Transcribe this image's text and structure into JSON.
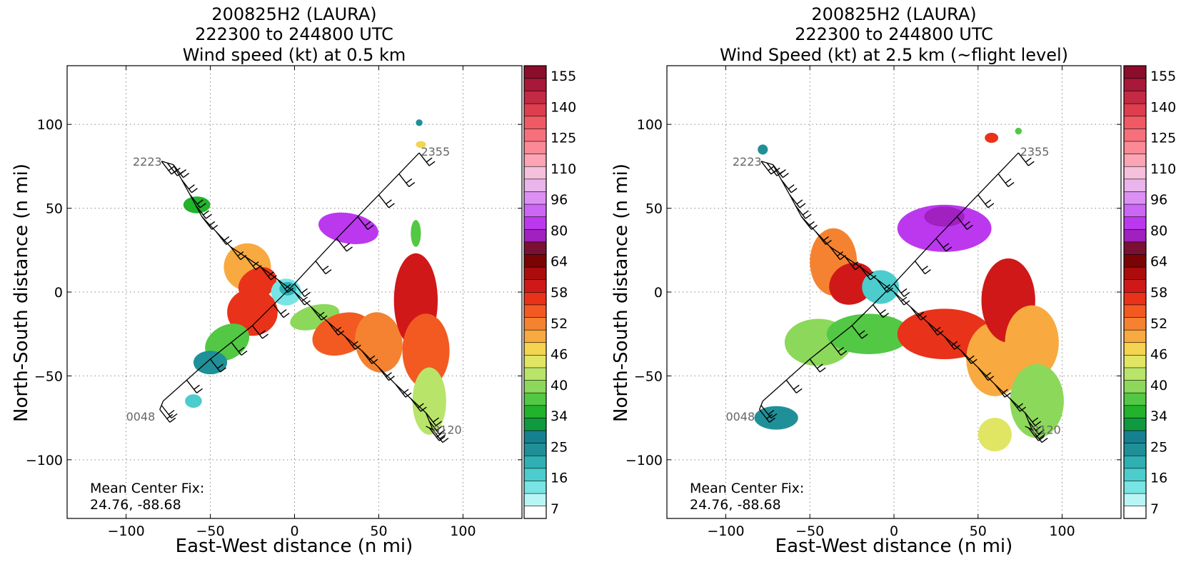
{
  "colors": {
    "colorbar": [
      "#ffffff",
      "#b8f6f6",
      "#78e4e4",
      "#4ccccc",
      "#2eb0b4",
      "#1f9098",
      "#168090",
      "#0f9a40",
      "#22b22c",
      "#52c844",
      "#8cd85a",
      "#b8e46a",
      "#e0e664",
      "#f4d450",
      "#f8aa40",
      "#f58230",
      "#f25a22",
      "#e8321a",
      "#d01818",
      "#ac0c0c",
      "#7a0404",
      "#7a1034",
      "#a020c0",
      "#bc38ee",
      "#cc66f4",
      "#dc90f4",
      "#eab4ec",
      "#f5c0dc",
      "#fca4b4",
      "#fb8a96",
      "#f6707c",
      "#ef5a64",
      "#de3e4e",
      "#c42a44",
      "#a81838",
      "#8c0c2c"
    ]
  },
  "panels": [
    {
      "title_lines": [
        "200825H2 (LAURA)",
        "222300 to 244800 UTC",
        "Wind speed (kt) at 0.5 km"
      ],
      "xlabel": "East-West distance (n mi)",
      "ylabel": "North-South distance (n mi)",
      "xticks": [
        "−100",
        "−50",
        "0",
        "50",
        "100"
      ],
      "yticks": [
        "100",
        "50",
        "0",
        "−50",
        "−100"
      ],
      "colorbar_ticks": [
        "155",
        "140",
        "125",
        "110",
        "96",
        "80",
        "64",
        "58",
        "52",
        "46",
        "40",
        "34",
        "25",
        "16",
        "7"
      ],
      "fix_line1": "Mean Center Fix:",
      "fix_line2": "24.76, -88.68",
      "track_labels": [
        "2223",
        "2355",
        "0048",
        "0120"
      ]
    },
    {
      "title_lines": [
        "200825H2 (LAURA)",
        "222300 to 244800 UTC",
        "Wind Speed (kt) at 2.5 km (~flight level)"
      ],
      "xlabel": "East-West distance (n mi)",
      "ylabel": "North-South distance (n mi)",
      "xticks": [
        "−100",
        "−50",
        "0",
        "50",
        "100"
      ],
      "yticks": [
        "100",
        "50",
        "0",
        "−50",
        "−100"
      ],
      "colorbar_ticks": [
        "155",
        "140",
        "125",
        "110",
        "96",
        "80",
        "64",
        "58",
        "52",
        "46",
        "40",
        "34",
        "25",
        "16",
        "7"
      ],
      "fix_line1": "Mean Center Fix:",
      "fix_line2": "24.76, -88.68",
      "track_labels": [
        "2223",
        "2355",
        "0048",
        "0120"
      ]
    }
  ],
  "chart_data": [
    {
      "type": "heatmap",
      "title": "200825H2 (LAURA) 222300 to 244800 UTC Wind speed (kt) at 0.5 km",
      "xlabel": "East-West distance (n mi)",
      "ylabel": "North-South distance (n mi)",
      "xlim": [
        -135,
        135
      ],
      "ylim": [
        -135,
        135
      ],
      "xticks": [
        -100,
        -50,
        0,
        50,
        100
      ],
      "yticks": [
        -100,
        -50,
        0,
        50,
        100
      ],
      "grid": true,
      "colorbar_levels": [
        7,
        16,
        25,
        34,
        40,
        46,
        52,
        58,
        64,
        80,
        96,
        110,
        125,
        140,
        155
      ],
      "mean_center_fix": [
        24.76,
        -88.68
      ],
      "track": [
        {
          "label": "2223",
          "points": [
            [
              -79,
              78
            ],
            [
              -72,
              76
            ],
            [
              -62,
              58
            ],
            [
              -55,
              45
            ],
            [
              -38,
              27
            ],
            [
              -20,
              15
            ],
            [
              0,
              0
            ],
            [
              20,
              -18
            ],
            [
              40,
              -35
            ],
            [
              60,
              -55
            ],
            [
              78,
              -72
            ],
            [
              82,
              -82
            ]
          ]
        },
        {
          "label": "2355",
          "points": [
            [
              74,
              83
            ],
            [
              50,
              58
            ],
            [
              25,
              32
            ],
            [
              0,
              5
            ],
            [
              -25,
              -20
            ],
            [
              -50,
              -40
            ],
            [
              -78,
              -65
            ]
          ]
        },
        {
          "label": "0048",
          "points": [
            [
              -80,
              -70
            ],
            [
              -78,
              -65
            ]
          ]
        },
        {
          "label": "0120",
          "points": [
            [
              82,
              -82
            ],
            [
              78,
              -80
            ]
          ]
        }
      ],
      "blobs": [
        {
          "cx": -58,
          "cy": 52,
          "rx": 8,
          "ry": 5,
          "rot": 0,
          "c": 8
        },
        {
          "cx": -28,
          "cy": 15,
          "rx": 14,
          "ry": 14,
          "rot": 0,
          "c": 14
        },
        {
          "cx": -22,
          "cy": 5,
          "rx": 12,
          "ry": 9,
          "rot": 30,
          "c": 17
        },
        {
          "cx": -5,
          "cy": 0,
          "rx": 9,
          "ry": 8,
          "rot": 0,
          "c": 2
        },
        {
          "cx": -4,
          "cy": 2,
          "rx": 5,
          "ry": 4,
          "rot": 0,
          "c": 4
        },
        {
          "cx": -25,
          "cy": -12,
          "rx": 15,
          "ry": 14,
          "rot": 0,
          "c": 17
        },
        {
          "cx": -40,
          "cy": -30,
          "rx": 14,
          "ry": 10,
          "rot": 30,
          "c": 9
        },
        {
          "cx": -50,
          "cy": -42,
          "rx": 10,
          "ry": 7,
          "rot": 0,
          "c": 5
        },
        {
          "cx": -60,
          "cy": -65,
          "rx": 5,
          "ry": 4,
          "rot": 0,
          "c": 3
        },
        {
          "cx": 32,
          "cy": 38,
          "rx": 18,
          "ry": 9,
          "rot": -10,
          "c": 23
        },
        {
          "cx": 12,
          "cy": -15,
          "rx": 15,
          "ry": 7,
          "rot": 15,
          "c": 10
        },
        {
          "cx": 28,
          "cy": -25,
          "rx": 18,
          "ry": 12,
          "rot": 20,
          "c": 16
        },
        {
          "cx": 50,
          "cy": -30,
          "rx": 14,
          "ry": 18,
          "rot": 10,
          "c": 15
        },
        {
          "cx": 72,
          "cy": -5,
          "rx": 13,
          "ry": 28,
          "rot": 0,
          "c": 18
        },
        {
          "cx": 78,
          "cy": -35,
          "rx": 14,
          "ry": 22,
          "rot": 0,
          "c": 16
        },
        {
          "cx": 80,
          "cy": -65,
          "rx": 10,
          "ry": 20,
          "rot": 0,
          "c": 11
        },
        {
          "cx": 72,
          "cy": 35,
          "rx": 3,
          "ry": 8,
          "rot": 0,
          "c": 9
        },
        {
          "cx": 75,
          "cy": 88,
          "rx": 3,
          "ry": 2,
          "rot": 0,
          "c": 13
        },
        {
          "cx": 74,
          "cy": 101,
          "rx": 2,
          "ry": 2,
          "rot": 0,
          "c": 5
        }
      ]
    },
    {
      "type": "heatmap",
      "title": "200825H2 (LAURA) 222300 to 244800 UTC Wind Speed (kt) at 2.5 km (~flight level)",
      "xlabel": "East-West distance (n mi)",
      "ylabel": "North-South distance (n mi)",
      "xlim": [
        -135,
        135
      ],
      "ylim": [
        -135,
        135
      ],
      "xticks": [
        -100,
        -50,
        0,
        50,
        100
      ],
      "yticks": [
        -100,
        -50,
        0,
        50,
        100
      ],
      "grid": true,
      "colorbar_levels": [
        7,
        16,
        25,
        34,
        40,
        46,
        52,
        58,
        64,
        80,
        96,
        110,
        125,
        140,
        155
      ],
      "mean_center_fix": [
        24.76,
        -88.68
      ],
      "track": [
        {
          "label": "2223",
          "points": [
            [
              -79,
              78
            ],
            [
              -72,
              76
            ],
            [
              -62,
              58
            ],
            [
              -55,
              45
            ],
            [
              -38,
              27
            ],
            [
              -20,
              15
            ],
            [
              0,
              0
            ],
            [
              20,
              -18
            ],
            [
              40,
              -35
            ],
            [
              60,
              -55
            ],
            [
              78,
              -72
            ],
            [
              82,
              -82
            ]
          ]
        },
        {
          "label": "2355",
          "points": [
            [
              74,
              83
            ],
            [
              50,
              58
            ],
            [
              25,
              32
            ],
            [
              0,
              5
            ],
            [
              -25,
              -20
            ],
            [
              -50,
              -40
            ],
            [
              -78,
              -65
            ]
          ]
        },
        {
          "label": "0048",
          "points": [
            [
              -80,
              -70
            ],
            [
              -78,
              -65
            ]
          ]
        },
        {
          "label": "0120",
          "points": [
            [
              82,
              -82
            ],
            [
              78,
              -80
            ]
          ]
        }
      ],
      "blobs": [
        {
          "cx": -78,
          "cy": 85,
          "rx": 3,
          "ry": 3,
          "rot": 0,
          "c": 5
        },
        {
          "cx": -36,
          "cy": 18,
          "rx": 14,
          "ry": 20,
          "rot": 0,
          "c": 15
        },
        {
          "cx": -25,
          "cy": 5,
          "rx": 14,
          "ry": 12,
          "rot": 30,
          "c": 18
        },
        {
          "cx": -8,
          "cy": 3,
          "rx": 11,
          "ry": 10,
          "rot": 0,
          "c": 3
        },
        {
          "cx": -45,
          "cy": -30,
          "rx": 20,
          "ry": 14,
          "rot": 0,
          "c": 10
        },
        {
          "cx": -15,
          "cy": -25,
          "rx": 25,
          "ry": 12,
          "rot": 0,
          "c": 9
        },
        {
          "cx": -70,
          "cy": -75,
          "rx": 13,
          "ry": 7,
          "rot": 0,
          "c": 5
        },
        {
          "cx": 30,
          "cy": 38,
          "rx": 28,
          "ry": 14,
          "rot": 0,
          "c": 23
        },
        {
          "cx": 30,
          "cy": 45,
          "rx": 12,
          "ry": 6,
          "rot": 0,
          "c": 22
        },
        {
          "cx": 30,
          "cy": -25,
          "rx": 28,
          "ry": 15,
          "rot": 0,
          "c": 17
        },
        {
          "cx": 60,
          "cy": -40,
          "rx": 17,
          "ry": 22,
          "rot": 0,
          "c": 14
        },
        {
          "cx": 68,
          "cy": -5,
          "rx": 16,
          "ry": 25,
          "rot": 0,
          "c": 18
        },
        {
          "cx": 82,
          "cy": -30,
          "rx": 16,
          "ry": 22,
          "rot": 0,
          "c": 14
        },
        {
          "cx": 85,
          "cy": -65,
          "rx": 16,
          "ry": 22,
          "rot": 0,
          "c": 10
        },
        {
          "cx": 60,
          "cy": -85,
          "rx": 10,
          "ry": 10,
          "rot": 0,
          "c": 12
        },
        {
          "cx": 58,
          "cy": 92,
          "rx": 4,
          "ry": 3,
          "rot": 0,
          "c": 17
        },
        {
          "cx": 74,
          "cy": 96,
          "rx": 2,
          "ry": 2,
          "rot": 0,
          "c": 9
        }
      ]
    }
  ]
}
